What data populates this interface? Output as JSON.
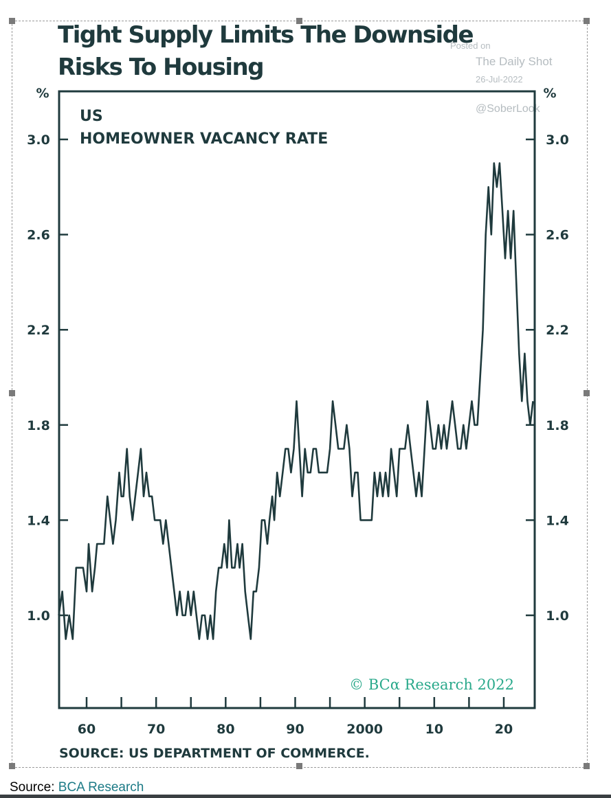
{
  "page": {
    "title": "Tight Supply Limits The Downside Risks To Housing",
    "source_note": "SOURCE: US DEPARTMENT OF COMMERCE.",
    "caption_prefix": "Source: ",
    "caption_link": "BCA Research",
    "watermark": {
      "line1": "Posted on",
      "line2": "The Daily Shot",
      "line3": "26-Jul-2022",
      "line4": "@SoberLook"
    }
  },
  "colors": {
    "ink": "#1f3a3d",
    "line": "#1f3a3d",
    "copyright": "#2aa98b",
    "link": "#1c7a86"
  },
  "chart_data": {
    "type": "line",
    "title": "Tight Supply Limits The Downside Risks To Housing",
    "panel_label_1": "US",
    "panel_label_2": "HOMEOWNER VACANCY RATE",
    "ylabel_left": "%",
    "ylabel_right": "%",
    "ylim": [
      0.6,
      3.2
    ],
    "xlim": [
      1956,
      2025
    ],
    "y_ticks": [
      1.0,
      1.4,
      1.8,
      2.2,
      2.6,
      3.0
    ],
    "y_tick_labels": [
      "1.0",
      "1.4",
      "1.8",
      "2.2",
      "2.6",
      "3.0"
    ],
    "x_ticks": [
      1960,
      1965,
      1970,
      1975,
      1980,
      1985,
      1990,
      1995,
      2000,
      2005,
      2010,
      2015,
      2020
    ],
    "x_tick_labels": [
      {
        "x": 1960,
        "label": "60"
      },
      {
        "x": 1970,
        "label": "70"
      },
      {
        "x": 1980,
        "label": "80"
      },
      {
        "x": 1990,
        "label": "90"
      },
      {
        "x": 2000,
        "label": "2000"
      },
      {
        "x": 2010,
        "label": "10"
      },
      {
        "x": 2020,
        "label": "20"
      }
    ],
    "grid": false,
    "annotation": "© BCα Research 2022",
    "series": [
      {
        "values": [
          [
            1956.0,
            1.0
          ],
          [
            1956.5,
            1.1
          ],
          [
            1957.0,
            0.9
          ],
          [
            1957.5,
            1.0
          ],
          [
            1958.0,
            0.9
          ],
          [
            1958.5,
            1.2
          ],
          [
            1959.0,
            1.2
          ],
          [
            1959.5,
            1.2
          ],
          [
            1960.0,
            1.1
          ],
          [
            1960.3,
            1.3
          ],
          [
            1960.8,
            1.1
          ],
          [
            1961.2,
            1.2
          ],
          [
            1961.5,
            1.3
          ],
          [
            1962.0,
            1.3
          ],
          [
            1962.5,
            1.3
          ],
          [
            1963.0,
            1.5
          ],
          [
            1963.4,
            1.4
          ],
          [
            1963.8,
            1.3
          ],
          [
            1964.2,
            1.4
          ],
          [
            1964.7,
            1.6
          ],
          [
            1965.0,
            1.5
          ],
          [
            1965.3,
            1.5
          ],
          [
            1965.8,
            1.7
          ],
          [
            1966.2,
            1.5
          ],
          [
            1966.6,
            1.4
          ],
          [
            1967.0,
            1.5
          ],
          [
            1967.4,
            1.6
          ],
          [
            1967.8,
            1.7
          ],
          [
            1968.2,
            1.5
          ],
          [
            1968.6,
            1.6
          ],
          [
            1969.0,
            1.5
          ],
          [
            1969.4,
            1.5
          ],
          [
            1969.8,
            1.4
          ],
          [
            1970.2,
            1.4
          ],
          [
            1970.6,
            1.4
          ],
          [
            1971.0,
            1.3
          ],
          [
            1971.4,
            1.4
          ],
          [
            1971.8,
            1.3
          ],
          [
            1972.2,
            1.2
          ],
          [
            1972.6,
            1.1
          ],
          [
            1973.0,
            1.0
          ],
          [
            1973.4,
            1.1
          ],
          [
            1973.8,
            1.0
          ],
          [
            1974.2,
            1.0
          ],
          [
            1974.6,
            1.1
          ],
          [
            1975.0,
            1.0
          ],
          [
            1975.4,
            1.1
          ],
          [
            1975.8,
            1.0
          ],
          [
            1976.2,
            0.9
          ],
          [
            1976.6,
            1.0
          ],
          [
            1977.0,
            1.0
          ],
          [
            1977.4,
            0.9
          ],
          [
            1977.8,
            1.0
          ],
          [
            1978.2,
            0.9
          ],
          [
            1978.6,
            1.1
          ],
          [
            1979.0,
            1.2
          ],
          [
            1979.4,
            1.2
          ],
          [
            1979.8,
            1.3
          ],
          [
            1980.2,
            1.2
          ],
          [
            1980.5,
            1.4
          ],
          [
            1980.9,
            1.2
          ],
          [
            1981.3,
            1.2
          ],
          [
            1981.7,
            1.3
          ],
          [
            1982.0,
            1.2
          ],
          [
            1982.4,
            1.3
          ],
          [
            1982.8,
            1.1
          ],
          [
            1983.2,
            1.0
          ],
          [
            1983.6,
            0.9
          ],
          [
            1984.0,
            1.1
          ],
          [
            1984.4,
            1.1
          ],
          [
            1984.8,
            1.2
          ],
          [
            1985.2,
            1.4
          ],
          [
            1985.6,
            1.4
          ],
          [
            1986.0,
            1.3
          ],
          [
            1986.3,
            1.4
          ],
          [
            1986.7,
            1.5
          ],
          [
            1987.0,
            1.4
          ],
          [
            1987.4,
            1.6
          ],
          [
            1987.8,
            1.5
          ],
          [
            1988.2,
            1.6
          ],
          [
            1988.6,
            1.7
          ],
          [
            1989.0,
            1.7
          ],
          [
            1989.4,
            1.6
          ],
          [
            1989.8,
            1.7
          ],
          [
            1990.2,
            1.9
          ],
          [
            1990.6,
            1.7
          ],
          [
            1991.0,
            1.5
          ],
          [
            1991.4,
            1.7
          ],
          [
            1991.8,
            1.6
          ],
          [
            1992.2,
            1.6
          ],
          [
            1992.6,
            1.7
          ],
          [
            1993.0,
            1.7
          ],
          [
            1993.4,
            1.6
          ],
          [
            1993.8,
            1.6
          ],
          [
            1994.2,
            1.6
          ],
          [
            1994.6,
            1.6
          ],
          [
            1995.0,
            1.7
          ],
          [
            1995.4,
            1.9
          ],
          [
            1995.8,
            1.8
          ],
          [
            1996.2,
            1.7
          ],
          [
            1996.6,
            1.7
          ],
          [
            1997.0,
            1.7
          ],
          [
            1997.4,
            1.8
          ],
          [
            1997.8,
            1.7
          ],
          [
            1998.2,
            1.5
          ],
          [
            1998.6,
            1.6
          ],
          [
            1999.0,
            1.6
          ],
          [
            1999.4,
            1.4
          ],
          [
            1999.8,
            1.4
          ],
          [
            2000.2,
            1.4
          ],
          [
            2000.6,
            1.4
          ],
          [
            2001.0,
            1.4
          ],
          [
            2001.4,
            1.6
          ],
          [
            2001.8,
            1.5
          ],
          [
            2002.2,
            1.6
          ],
          [
            2002.6,
            1.5
          ],
          [
            2003.0,
            1.6
          ],
          [
            2003.4,
            1.5
          ],
          [
            2003.8,
            1.7
          ],
          [
            2004.2,
            1.6
          ],
          [
            2004.6,
            1.5
          ],
          [
            2005.0,
            1.7
          ],
          [
            2005.4,
            1.7
          ],
          [
            2005.8,
            1.7
          ],
          [
            2006.2,
            1.8
          ],
          [
            2006.6,
            1.7
          ],
          [
            2007.0,
            1.6
          ],
          [
            2007.4,
            1.5
          ],
          [
            2007.8,
            1.6
          ],
          [
            2008.2,
            1.5
          ],
          [
            2008.6,
            1.7
          ],
          [
            2009.0,
            1.9
          ],
          [
            2009.4,
            1.8
          ],
          [
            2009.8,
            1.7
          ],
          [
            2010.2,
            1.7
          ],
          [
            2010.6,
            1.8
          ],
          [
            2011.0,
            1.7
          ],
          [
            2011.4,
            1.8
          ],
          [
            2011.8,
            1.7
          ],
          [
            2012.2,
            1.8
          ],
          [
            2012.6,
            1.9
          ],
          [
            2013.0,
            1.8
          ],
          [
            2013.4,
            1.7
          ],
          [
            2013.8,
            1.7
          ],
          [
            2014.2,
            1.8
          ],
          [
            2014.6,
            1.7
          ],
          [
            2015.0,
            1.8
          ],
          [
            2015.4,
            1.9
          ],
          [
            2015.8,
            1.8
          ],
          [
            2016.2,
            1.8
          ],
          [
            2016.6,
            2.0
          ],
          [
            2017.0,
            2.2
          ],
          [
            2017.4,
            2.6
          ],
          [
            2017.8,
            2.8
          ],
          [
            2018.2,
            2.6
          ],
          [
            2018.6,
            2.9
          ],
          [
            2019.0,
            2.8
          ],
          [
            2019.4,
            2.9
          ],
          [
            2019.8,
            2.7
          ],
          [
            2020.2,
            2.5
          ],
          [
            2020.6,
            2.7
          ],
          [
            2021.0,
            2.5
          ],
          [
            2021.4,
            2.7
          ],
          [
            2021.8,
            2.4
          ],
          [
            2022.2,
            2.1
          ],
          [
            2022.6,
            1.9
          ],
          [
            2023.0,
            2.1
          ],
          [
            2023.4,
            1.9
          ],
          [
            2023.8,
            1.8
          ],
          [
            2024.2,
            1.9
          ]
        ]
      }
    ]
  }
}
